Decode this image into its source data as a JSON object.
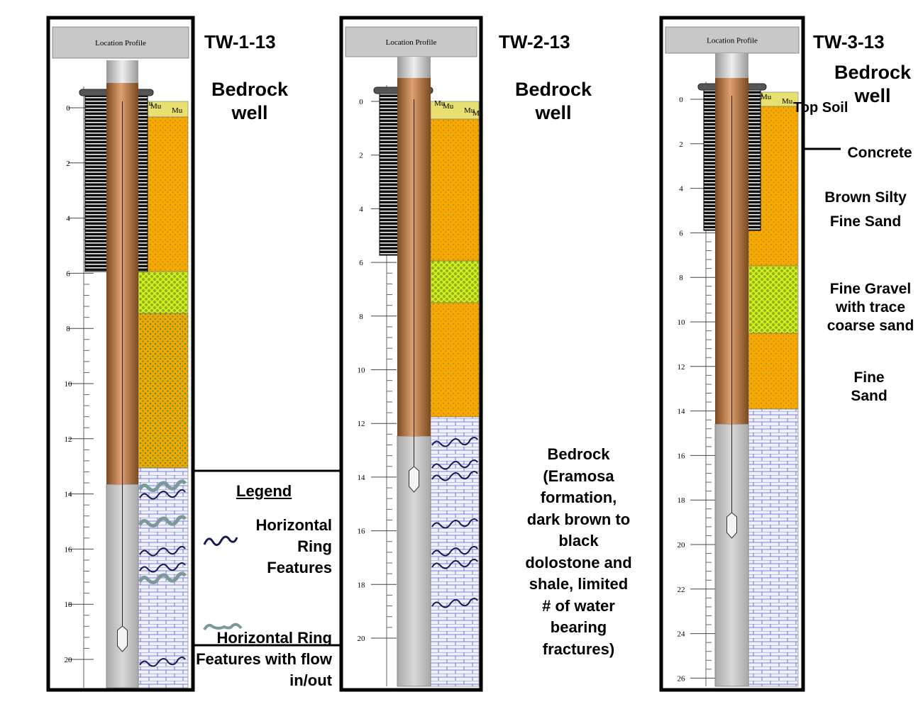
{
  "wells": [
    {
      "header": "Location Profile",
      "name": "TW-1-13",
      "title": "Bedrock well",
      "depth_ticks": [
        0,
        2,
        4,
        6,
        8,
        10,
        12,
        14,
        16,
        18,
        20
      ],
      "codes": [
        "Mu",
        "Mu",
        "Mu"
      ]
    },
    {
      "header": "Location Profile",
      "name": "TW-2-13",
      "title": "Bedrock well",
      "depth_ticks": [
        0,
        2,
        4,
        6,
        8,
        10,
        12,
        14,
        16,
        18,
        20
      ],
      "codes": [
        "Mu",
        "Mu",
        "Mu",
        "Mu"
      ]
    },
    {
      "header": "Location Profile",
      "name": "TW-3-13",
      "title": "Bedrock well",
      "depth_ticks": [
        0,
        2,
        4,
        6,
        8,
        10,
        12,
        14,
        16,
        18,
        20,
        22,
        24,
        26
      ],
      "codes": [
        "Mu",
        "Mu",
        "Mu"
      ]
    }
  ],
  "legend": {
    "title": "Legend",
    "items": [
      "Horizontal Ring Features",
      "Horizontal Ring Features with flow in/out"
    ]
  },
  "bedrock_description": "Bedrock (Eramosa formation, dark brown to black dolostone and shale, limited # of water bearing fractures)",
  "tw3_labels": {
    "top_soil": "Top Soil",
    "concrete": "Concrete",
    "brown_sand": "Brown Silty Fine Sand",
    "fine_gravel": "Fine Gravel with trace coarse sand",
    "fine_sand": "Fine Sand"
  }
}
